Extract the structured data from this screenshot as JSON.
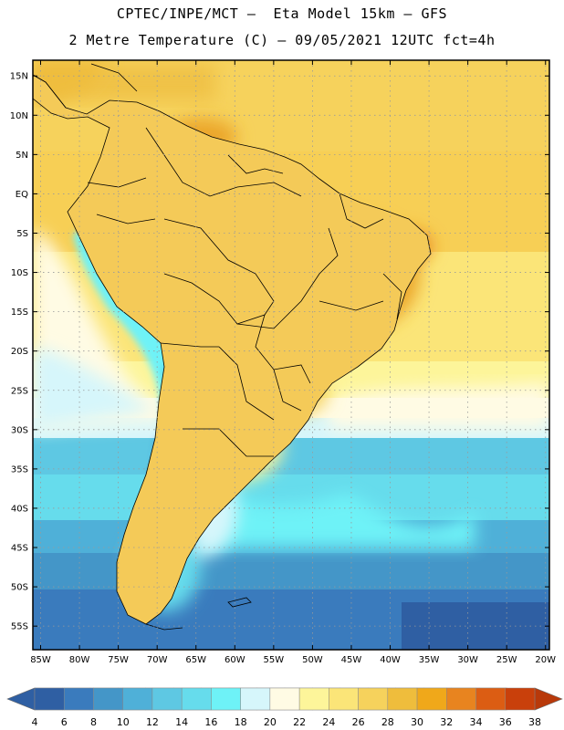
{
  "header": {
    "line1": "CPTEC/INPE/MCT –  Eta Model 15km – GFS",
    "line2": "2 Metre Temperature (C) – 09/05/2021 12UTC fct=4h"
  },
  "map": {
    "region": "South America",
    "lat_labels": [
      "15N",
      "10N",
      "5N",
      "EQ",
      "5S",
      "10S",
      "15S",
      "20S",
      "25S",
      "30S",
      "35S",
      "40S",
      "45S",
      "50S",
      "55S"
    ],
    "lat_values": [
      15,
      10,
      5,
      0,
      -5,
      -10,
      -15,
      -20,
      -25,
      -30,
      -35,
      -40,
      -45,
      -50,
      -55
    ],
    "lon_labels": [
      "85W",
      "80W",
      "75W",
      "70W",
      "65W",
      "60W",
      "55W",
      "50W",
      "45W",
      "40W",
      "35W",
      "30W",
      "25W",
      "20W"
    ],
    "lon_values": [
      -85,
      -80,
      -75,
      -70,
      -65,
      -60,
      -55,
      -50,
      -45,
      -40,
      -35,
      -30,
      -25,
      -20
    ],
    "lon_range": [
      -86,
      -19.5
    ],
    "lat_range": [
      -58,
      17
    ]
  },
  "colorbar": {
    "labels": [
      "4",
      "6",
      "8",
      "10",
      "12",
      "14",
      "16",
      "18",
      "20",
      "22",
      "24",
      "26",
      "28",
      "30",
      "32",
      "34",
      "36",
      "38"
    ],
    "colors": [
      "#2f5fa3",
      "#3a7bbd",
      "#4496c8",
      "#4fb0d8",
      "#5ec8e3",
      "#66dcec",
      "#6ef2f7",
      "#d6f6fb",
      "#fffbe4",
      "#fdf59a",
      "#fbe578",
      "#f6d25c",
      "#efbd3c",
      "#f0a81a",
      "#e8841f",
      "#dc5d13",
      "#c9400b",
      "#b8390a"
    ]
  }
}
